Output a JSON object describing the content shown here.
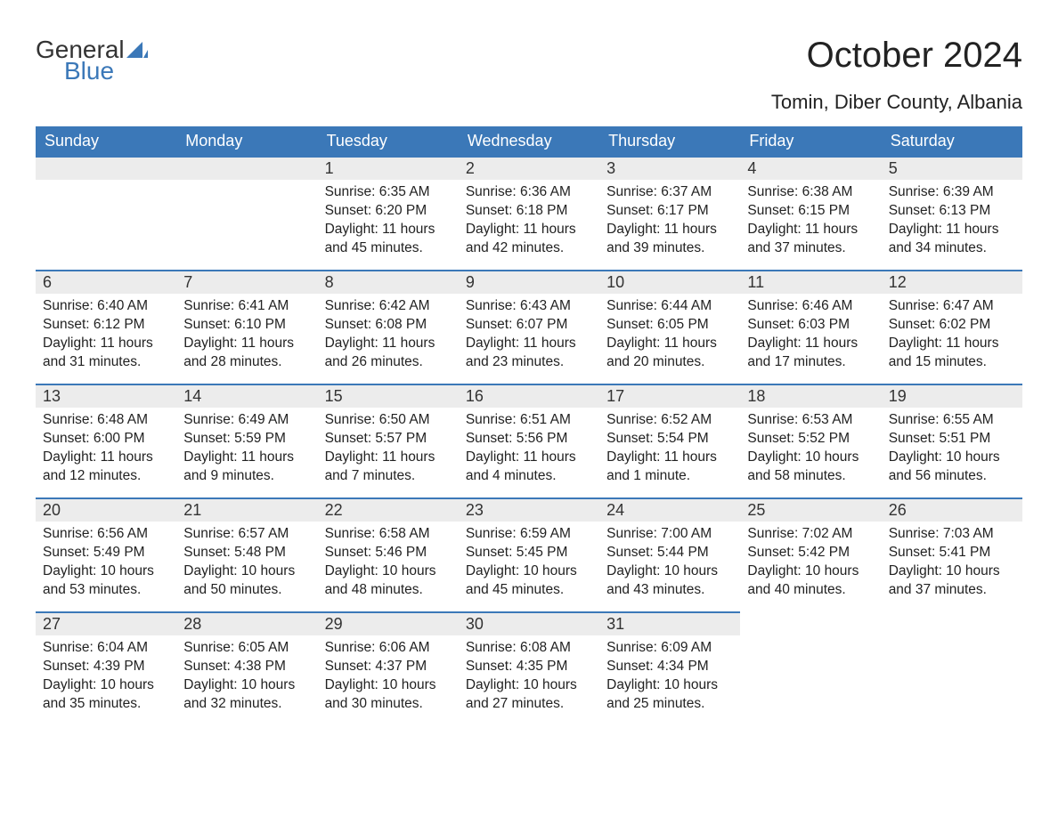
{
  "logo": {
    "general": "General",
    "blue": "Blue"
  },
  "title": "October 2024",
  "subtitle": "Tomin, Diber County, Albania",
  "colors": {
    "header_bg": "#3b78b8",
    "header_text": "#ffffff",
    "daynum_bg": "#ececec",
    "daynum_border": "#3b78b8",
    "body_text": "#222222",
    "page_bg": "#ffffff"
  },
  "day_headers": [
    "Sunday",
    "Monday",
    "Tuesday",
    "Wednesday",
    "Thursday",
    "Friday",
    "Saturday"
  ],
  "weeks": [
    [
      {
        "n": "",
        "sunrise": "",
        "sunset": "",
        "daylight": ""
      },
      {
        "n": "",
        "sunrise": "",
        "sunset": "",
        "daylight": ""
      },
      {
        "n": "1",
        "sunrise": "Sunrise: 6:35 AM",
        "sunset": "Sunset: 6:20 PM",
        "daylight": "Daylight: 11 hours and 45 minutes."
      },
      {
        "n": "2",
        "sunrise": "Sunrise: 6:36 AM",
        "sunset": "Sunset: 6:18 PM",
        "daylight": "Daylight: 11 hours and 42 minutes."
      },
      {
        "n": "3",
        "sunrise": "Sunrise: 6:37 AM",
        "sunset": "Sunset: 6:17 PM",
        "daylight": "Daylight: 11 hours and 39 minutes."
      },
      {
        "n": "4",
        "sunrise": "Sunrise: 6:38 AM",
        "sunset": "Sunset: 6:15 PM",
        "daylight": "Daylight: 11 hours and 37 minutes."
      },
      {
        "n": "5",
        "sunrise": "Sunrise: 6:39 AM",
        "sunset": "Sunset: 6:13 PM",
        "daylight": "Daylight: 11 hours and 34 minutes."
      }
    ],
    [
      {
        "n": "6",
        "sunrise": "Sunrise: 6:40 AM",
        "sunset": "Sunset: 6:12 PM",
        "daylight": "Daylight: 11 hours and 31 minutes."
      },
      {
        "n": "7",
        "sunrise": "Sunrise: 6:41 AM",
        "sunset": "Sunset: 6:10 PM",
        "daylight": "Daylight: 11 hours and 28 minutes."
      },
      {
        "n": "8",
        "sunrise": "Sunrise: 6:42 AM",
        "sunset": "Sunset: 6:08 PM",
        "daylight": "Daylight: 11 hours and 26 minutes."
      },
      {
        "n": "9",
        "sunrise": "Sunrise: 6:43 AM",
        "sunset": "Sunset: 6:07 PM",
        "daylight": "Daylight: 11 hours and 23 minutes."
      },
      {
        "n": "10",
        "sunrise": "Sunrise: 6:44 AM",
        "sunset": "Sunset: 6:05 PM",
        "daylight": "Daylight: 11 hours and 20 minutes."
      },
      {
        "n": "11",
        "sunrise": "Sunrise: 6:46 AM",
        "sunset": "Sunset: 6:03 PM",
        "daylight": "Daylight: 11 hours and 17 minutes."
      },
      {
        "n": "12",
        "sunrise": "Sunrise: 6:47 AM",
        "sunset": "Sunset: 6:02 PM",
        "daylight": "Daylight: 11 hours and 15 minutes."
      }
    ],
    [
      {
        "n": "13",
        "sunrise": "Sunrise: 6:48 AM",
        "sunset": "Sunset: 6:00 PM",
        "daylight": "Daylight: 11 hours and 12 minutes."
      },
      {
        "n": "14",
        "sunrise": "Sunrise: 6:49 AM",
        "sunset": "Sunset: 5:59 PM",
        "daylight": "Daylight: 11 hours and 9 minutes."
      },
      {
        "n": "15",
        "sunrise": "Sunrise: 6:50 AM",
        "sunset": "Sunset: 5:57 PM",
        "daylight": "Daylight: 11 hours and 7 minutes."
      },
      {
        "n": "16",
        "sunrise": "Sunrise: 6:51 AM",
        "sunset": "Sunset: 5:56 PM",
        "daylight": "Daylight: 11 hours and 4 minutes."
      },
      {
        "n": "17",
        "sunrise": "Sunrise: 6:52 AM",
        "sunset": "Sunset: 5:54 PM",
        "daylight": "Daylight: 11 hours and 1 minute."
      },
      {
        "n": "18",
        "sunrise": "Sunrise: 6:53 AM",
        "sunset": "Sunset: 5:52 PM",
        "daylight": "Daylight: 10 hours and 58 minutes."
      },
      {
        "n": "19",
        "sunrise": "Sunrise: 6:55 AM",
        "sunset": "Sunset: 5:51 PM",
        "daylight": "Daylight: 10 hours and 56 minutes."
      }
    ],
    [
      {
        "n": "20",
        "sunrise": "Sunrise: 6:56 AM",
        "sunset": "Sunset: 5:49 PM",
        "daylight": "Daylight: 10 hours and 53 minutes."
      },
      {
        "n": "21",
        "sunrise": "Sunrise: 6:57 AM",
        "sunset": "Sunset: 5:48 PM",
        "daylight": "Daylight: 10 hours and 50 minutes."
      },
      {
        "n": "22",
        "sunrise": "Sunrise: 6:58 AM",
        "sunset": "Sunset: 5:46 PM",
        "daylight": "Daylight: 10 hours and 48 minutes."
      },
      {
        "n": "23",
        "sunrise": "Sunrise: 6:59 AM",
        "sunset": "Sunset: 5:45 PM",
        "daylight": "Daylight: 10 hours and 45 minutes."
      },
      {
        "n": "24",
        "sunrise": "Sunrise: 7:00 AM",
        "sunset": "Sunset: 5:44 PM",
        "daylight": "Daylight: 10 hours and 43 minutes."
      },
      {
        "n": "25",
        "sunrise": "Sunrise: 7:02 AM",
        "sunset": "Sunset: 5:42 PM",
        "daylight": "Daylight: 10 hours and 40 minutes."
      },
      {
        "n": "26",
        "sunrise": "Sunrise: 7:03 AM",
        "sunset": "Sunset: 5:41 PM",
        "daylight": "Daylight: 10 hours and 37 minutes."
      }
    ],
    [
      {
        "n": "27",
        "sunrise": "Sunrise: 6:04 AM",
        "sunset": "Sunset: 4:39 PM",
        "daylight": "Daylight: 10 hours and 35 minutes."
      },
      {
        "n": "28",
        "sunrise": "Sunrise: 6:05 AM",
        "sunset": "Sunset: 4:38 PM",
        "daylight": "Daylight: 10 hours and 32 minutes."
      },
      {
        "n": "29",
        "sunrise": "Sunrise: 6:06 AM",
        "sunset": "Sunset: 4:37 PM",
        "daylight": "Daylight: 10 hours and 30 minutes."
      },
      {
        "n": "30",
        "sunrise": "Sunrise: 6:08 AM",
        "sunset": "Sunset: 4:35 PM",
        "daylight": "Daylight: 10 hours and 27 minutes."
      },
      {
        "n": "31",
        "sunrise": "Sunrise: 6:09 AM",
        "sunset": "Sunset: 4:34 PM",
        "daylight": "Daylight: 10 hours and 25 minutes."
      },
      {
        "n": "",
        "sunrise": "",
        "sunset": "",
        "daylight": ""
      },
      {
        "n": "",
        "sunrise": "",
        "sunset": "",
        "daylight": ""
      }
    ]
  ]
}
